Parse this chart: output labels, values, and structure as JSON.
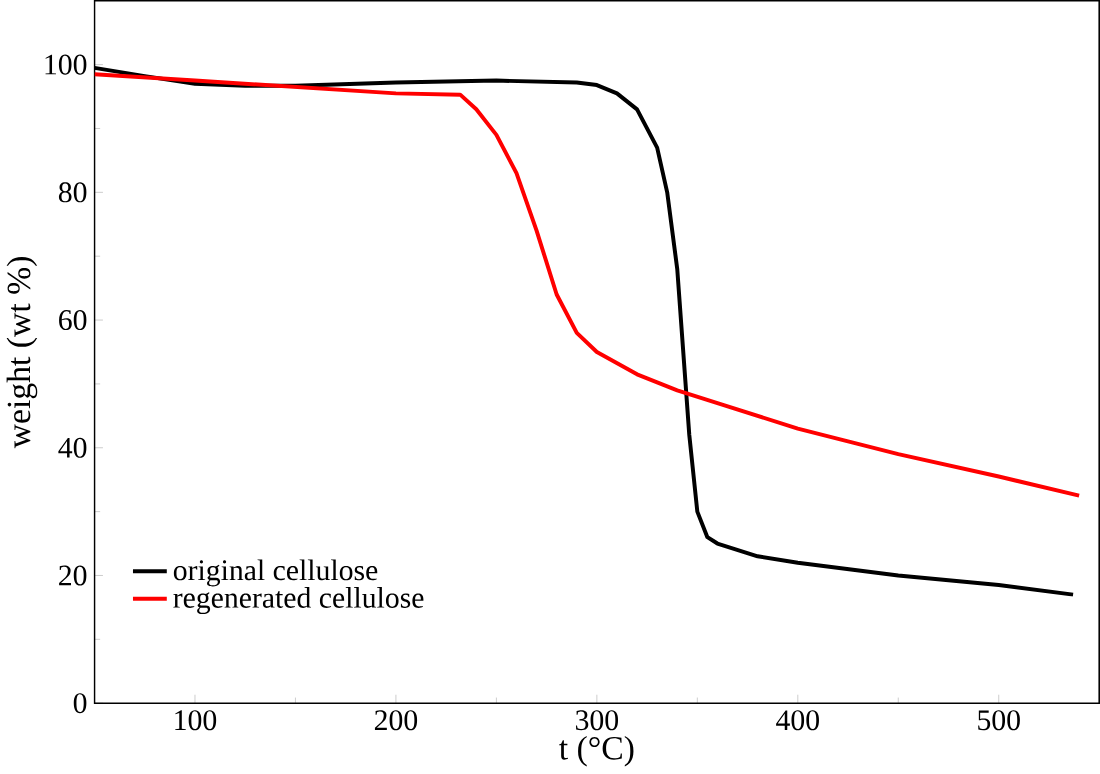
{
  "chart_data": {
    "type": "line",
    "xlabel": "t (°C)",
    "ylabel": "weight (wt %)",
    "xlim": [
      50,
      550
    ],
    "ylim": [
      0,
      110
    ],
    "xticks": [
      100,
      200,
      300,
      400,
      500
    ],
    "yticks": [
      0,
      20,
      40,
      60,
      80,
      100
    ],
    "legend": "bottom left",
    "grid": false,
    "series": [
      {
        "name": "original cellulose",
        "color": "#000000",
        "x": [
          50,
          75,
          100,
          125,
          150,
          200,
          250,
          290,
          300,
          310,
          320,
          330,
          335,
          340,
          343,
          346,
          350,
          355,
          360,
          380,
          400,
          450,
          500,
          537
        ],
        "values": [
          99.5,
          98.2,
          97,
          96.7,
          96.7,
          97.2,
          97.5,
          97.2,
          96.8,
          95.5,
          93,
          87,
          80,
          68,
          55,
          42,
          30,
          26,
          25,
          23,
          22,
          20,
          18.5,
          17
        ]
      },
      {
        "name": "regenerated cellulose",
        "color": "#ff0000",
        "x": [
          50,
          100,
          150,
          200,
          232,
          240,
          250,
          260,
          270,
          280,
          290,
          300,
          320,
          340,
          360,
          400,
          450,
          500,
          540
        ],
        "values": [
          98.5,
          97.5,
          96.5,
          95.5,
          95.3,
          93,
          89,
          83,
          74,
          64,
          58,
          55,
          51.5,
          49,
          47,
          43,
          39,
          35.5,
          32.5
        ]
      }
    ]
  }
}
